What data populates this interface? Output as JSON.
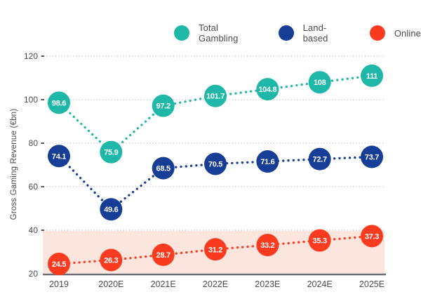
{
  "chart_data": {
    "type": "line",
    "title": "",
    "ylabel": "Gross Gaming Revenue (€bn)",
    "xlabel": "",
    "ylim": [
      20,
      120
    ],
    "yticks": [
      20,
      40,
      60,
      80,
      100,
      120
    ],
    "categories": [
      "2019",
      "2020E",
      "2021E",
      "2022E",
      "2023E",
      "2024E",
      "2025E"
    ],
    "series": [
      {
        "name": "Total Gambling",
        "color": "#1eb7a8",
        "values": [
          98.6,
          75.9,
          97.2,
          101.7,
          104.8,
          108,
          111
        ]
      },
      {
        "name": "Land-based",
        "color": "#173e96",
        "values": [
          74.1,
          49.6,
          68.5,
          70.5,
          71.6,
          72.7,
          73.7
        ]
      },
      {
        "name": "Online",
        "color": "#fb3b20",
        "values": [
          24.5,
          26.3,
          28.7,
          31.2,
          33.2,
          35.3,
          37.3
        ]
      }
    ],
    "legend_position": "top",
    "grid": "horizontal-dotted",
    "line_style": "dotted",
    "marker": "labeled-circle",
    "highlight_band": {
      "from": 20,
      "to": 40,
      "color": "#fbe5dd"
    },
    "axis_colors": {
      "gridline": "#c9c9c9",
      "axis_line": "#6e6e72",
      "tick_mark": "#56565c",
      "tick_text": "#4c4c53"
    }
  }
}
